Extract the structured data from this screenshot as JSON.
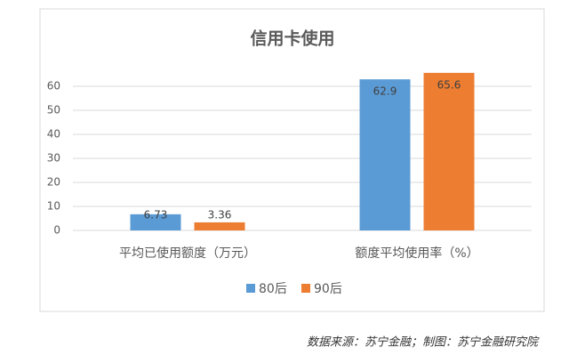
{
  "chart_data": {
    "type": "bar",
    "title": "信用卡使用",
    "categories": [
      "平均已使用额度（万元）",
      "额度平均使用率（%）"
    ],
    "series": [
      {
        "name": "80后",
        "color": "#5b9bd5",
        "values": [
          6.73,
          62.9
        ]
      },
      {
        "name": "90后",
        "color": "#ed7d31",
        "values": [
          3.36,
          65.6
        ]
      }
    ],
    "ylim": [
      0,
      70
    ],
    "yticks": [
      0,
      10,
      20,
      30,
      40,
      50,
      60
    ],
    "grid": true,
    "legend": "bottom",
    "source": "数据来源：苏宁金融；制图：苏宁金融研究院"
  }
}
